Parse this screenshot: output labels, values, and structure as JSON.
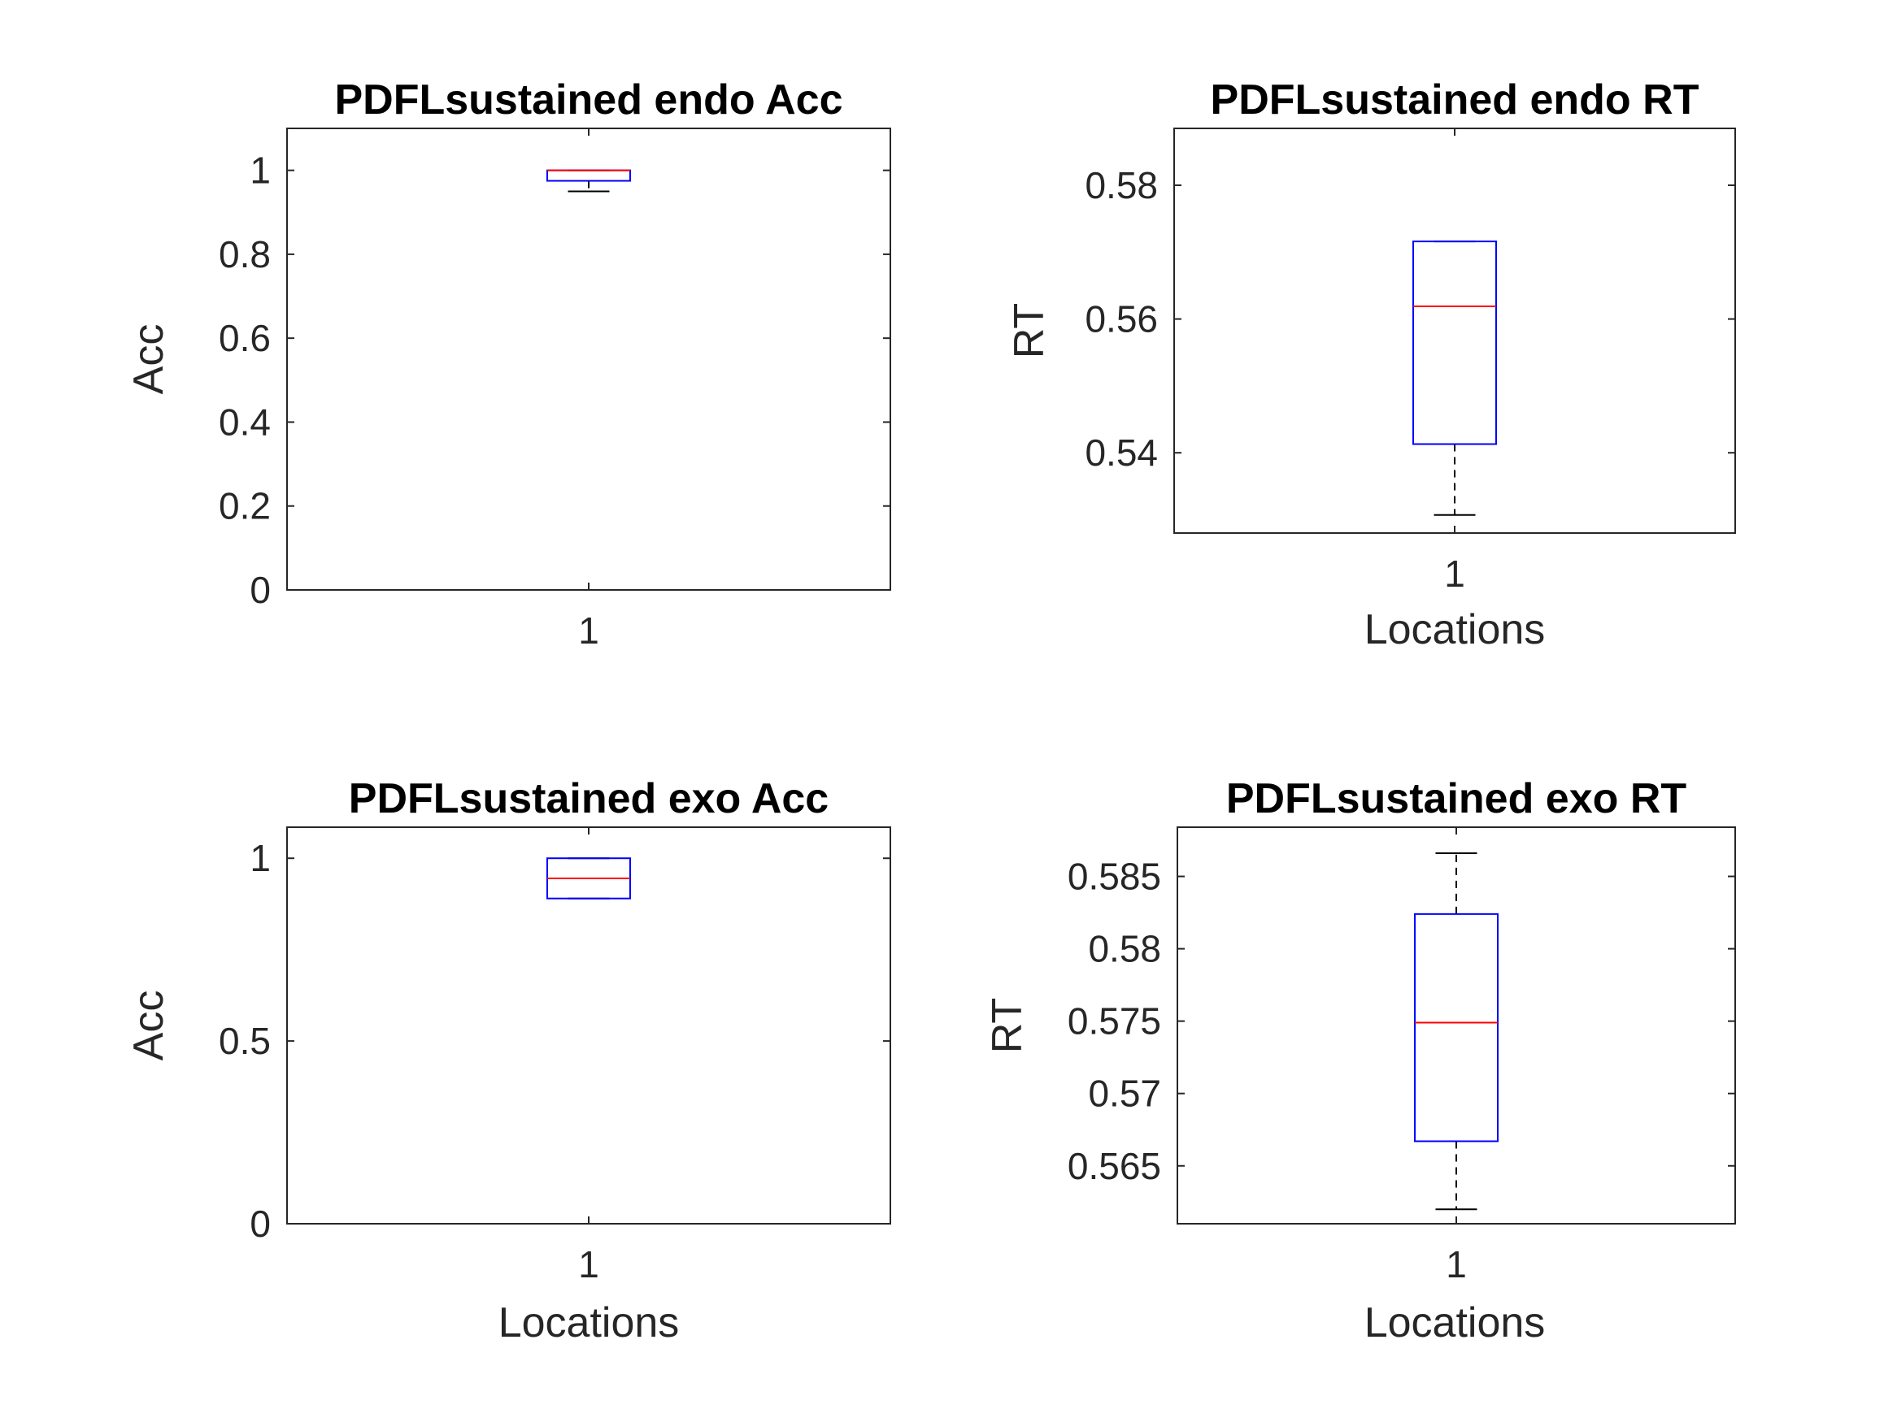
{
  "colors": {
    "axis": "#262626",
    "box": "#0000ff",
    "median": "#ff0000",
    "whisker": "#000000",
    "background": "#ffffff"
  },
  "chart_data": [
    {
      "type": "box",
      "title": "PDFLsustained endo Acc",
      "ylabel": "Acc",
      "xlabel": "",
      "categories": [
        "1"
      ],
      "ylim": [
        0,
        1.1
      ],
      "yticks": [
        0,
        0.2,
        0.4,
        0.6,
        0.8,
        1
      ],
      "ytick_labels": [
        "0",
        "0.2",
        "0.4",
        "0.6",
        "0.8",
        "1"
      ],
      "stats": {
        "lower_whisker": 0.95,
        "q1": 0.975,
        "median": 1.0,
        "q3": 1.0,
        "upper_whisker": 1.0
      }
    },
    {
      "type": "box",
      "title": "PDFLsustained endo RT",
      "ylabel": "RT",
      "xlabel": "Locations",
      "categories": [
        "1"
      ],
      "ylim": [
        0.528,
        0.5885
      ],
      "yticks": [
        0.54,
        0.56,
        0.58
      ],
      "ytick_labels": [
        "0.54",
        "0.56",
        "0.58"
      ],
      "stats": {
        "lower_whisker": 0.5307,
        "q1": 0.5413,
        "median": 0.5619,
        "q3": 0.5716,
        "upper_whisker": 0.5716
      }
    },
    {
      "type": "box",
      "title": "PDFLsustained exo Acc",
      "ylabel": "Acc",
      "xlabel": "Locations",
      "categories": [
        "1"
      ],
      "ylim": [
        0,
        1.085
      ],
      "yticks": [
        0,
        0.5,
        1
      ],
      "ytick_labels": [
        "0",
        "0.5",
        "1"
      ],
      "stats": {
        "lower_whisker": 0.89,
        "q1": 0.89,
        "median": 0.945,
        "q3": 1.0,
        "upper_whisker": 1.0
      }
    },
    {
      "type": "box",
      "title": "PDFLsustained exo RT",
      "ylabel": "RT",
      "xlabel": "Locations",
      "categories": [
        "1"
      ],
      "ylim": [
        0.561,
        0.5884
      ],
      "yticks": [
        0.565,
        0.57,
        0.575,
        0.58,
        0.585
      ],
      "ytick_labels": [
        "0.565",
        "0.57",
        "0.575",
        "0.58",
        "0.585"
      ],
      "stats": {
        "lower_whisker": 0.562,
        "q1": 0.5667,
        "median": 0.5749,
        "q3": 0.5824,
        "upper_whisker": 0.5866
      }
    }
  ]
}
